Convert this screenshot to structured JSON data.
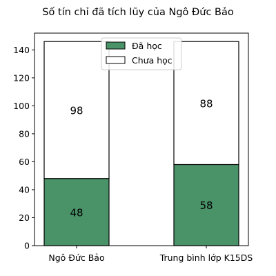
{
  "chart_data": {
    "type": "bar",
    "stacked": true,
    "title": "Số tín chỉ đã tích lũy của Ngô Đức Bảo",
    "xlabel": "",
    "ylabel": "",
    "categories": [
      "Ngô Đức Bảo",
      "Trung bình lớp K15DS"
    ],
    "series": [
      {
        "name": "Đã học",
        "values": [
          48,
          58
        ],
        "labels": [
          "48",
          "58"
        ],
        "color": "#4a9268"
      },
      {
        "name": "Chưa học",
        "values": [
          98,
          88
        ],
        "labels": [
          "98",
          "88"
        ],
        "color": "#ffffff"
      }
    ],
    "ylim": [
      0,
      152
    ],
    "yticks": [
      "0",
      "20",
      "40",
      "60",
      "80",
      "100",
      "120",
      "140"
    ],
    "legend_position": "top-center",
    "grid": false
  }
}
